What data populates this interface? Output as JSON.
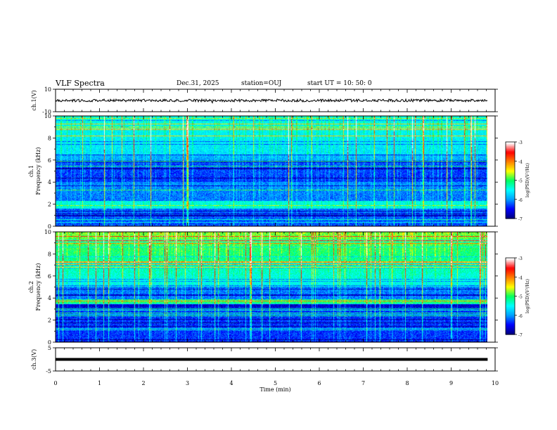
{
  "header": {
    "title": "VLF Spectra",
    "date": "Dec.31, 2025",
    "station": "station=OUJ",
    "start": "start  UT  =   10: 50: 0"
  },
  "chart_data": [
    {
      "type": "line",
      "panel": "waveform-ch1",
      "ylabel": "ch.1(V)",
      "ylim": [
        -10,
        10
      ],
      "yticks": [
        "10",
        "-10"
      ],
      "baseline": 0,
      "noise_amplitude": 1.2
    },
    {
      "type": "heatmap",
      "panel": "spectrogram-ch1",
      "ylabel_line1": "ch.1",
      "ylabel_line2": "Frequency  (kHz)",
      "ylim": [
        0,
        10
      ],
      "yticks": [
        "0",
        "2",
        "4",
        "6",
        "8",
        "10"
      ],
      "colorbar": {
        "label": "log(PSD)(V²/Hz)",
        "range": [
          -7,
          -3
        ],
        "ticks": [
          "-3",
          "-4",
          "-5",
          "-6",
          "-7"
        ]
      }
    },
    {
      "type": "heatmap",
      "panel": "spectrogram-ch2",
      "ylabel_line1": "ch.2",
      "ylabel_line2": "Frequency  (kHz)",
      "ylim": [
        0,
        10
      ],
      "yticks": [
        "0",
        "2",
        "4",
        "6",
        "8",
        "10"
      ],
      "colorbar": {
        "label": "log(PSD)(V²/Hz)",
        "range": [
          -7,
          -3
        ],
        "ticks": [
          "-3",
          "-4",
          "-5",
          "-6",
          "-7"
        ]
      }
    },
    {
      "type": "line",
      "panel": "waveform-ch3",
      "ylabel": "ch.3(V)",
      "ylim": [
        -5,
        5
      ],
      "yticks": [
        "5",
        "-5"
      ],
      "baseline": 0
    }
  ],
  "xaxis": {
    "label": "Time  (min)",
    "range": [
      0,
      10
    ],
    "ticks": [
      "0",
      "1",
      "2",
      "3",
      "4",
      "5",
      "6",
      "7",
      "8",
      "9",
      "10"
    ],
    "data_end": 9.83
  },
  "colors": {
    "axis": "#000000",
    "colormap": [
      "#000080",
      "#0000ff",
      "#00a0ff",
      "#00ffff",
      "#00ff60",
      "#ffff00",
      "#ff8000",
      "#ff0000",
      "#ffffff"
    ]
  }
}
